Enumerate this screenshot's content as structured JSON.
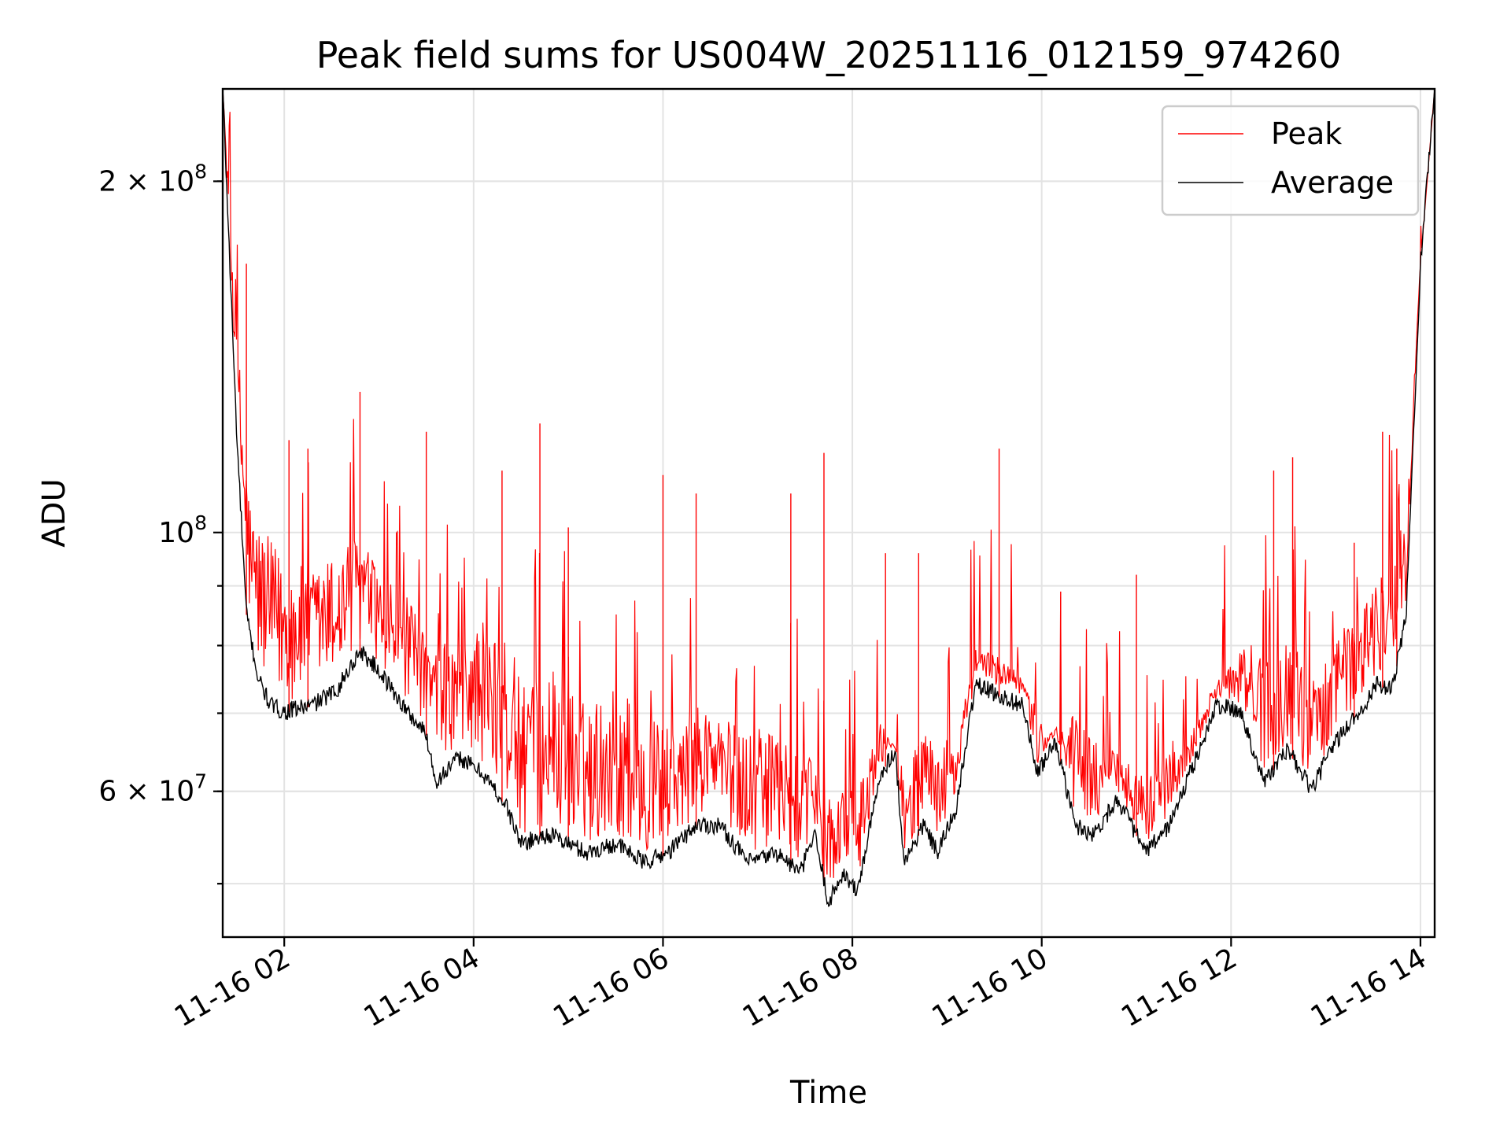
{
  "chart_data": {
    "type": "line",
    "title": "Peak field sums for US004W_20251116_012159_974260",
    "xlabel": "Time",
    "ylabel": "ADU",
    "yscale": "log",
    "xlim": [
      1.35,
      14.15
    ],
    "ylim": [
      45000000,
      240000000
    ],
    "x_ticks": [
      {
        "value": 2,
        "label": "11-16 02"
      },
      {
        "value": 4,
        "label": "11-16 04"
      },
      {
        "value": 6,
        "label": "11-16 06"
      },
      {
        "value": 8,
        "label": "11-16 08"
      },
      {
        "value": 10,
        "label": "11-16 10"
      },
      {
        "value": 12,
        "label": "11-16 12"
      },
      {
        "value": 14,
        "label": "11-16 14"
      }
    ],
    "y_major_ticks": [
      {
        "value": 60000000,
        "base": "6 × 10",
        "exp": "7"
      },
      {
        "value": 100000000,
        "base": "10",
        "exp": "8"
      },
      {
        "value": 200000000,
        "base": "2 × 10",
        "exp": "8"
      }
    ],
    "y_minor_ticks": [
      50000000,
      60000000,
      70000000,
      80000000,
      90000000,
      200000000
    ],
    "grid": true,
    "legend_position": "top-right",
    "series": [
      {
        "name": "Peak",
        "color": "#ff0000",
        "x": [
          1.35,
          1.5,
          1.65,
          1.8,
          2.0,
          2.3,
          2.6,
          2.8,
          3.0,
          3.3,
          3.55,
          3.85,
          4.1,
          4.4,
          4.55,
          4.8,
          5.2,
          5.5,
          5.8,
          6.1,
          6.4,
          6.7,
          7.0,
          7.3,
          7.55,
          7.75,
          7.9,
          8.05,
          8.3,
          8.55,
          8.8,
          9.1,
          9.3,
          9.6,
          9.85,
          10.05,
          10.35,
          10.65,
          10.9,
          11.1,
          11.35,
          11.6,
          11.85,
          12.1,
          12.4,
          12.65,
          12.9,
          13.2,
          13.5,
          13.7,
          13.85,
          14.0,
          14.15
        ],
        "values": [
          240000000,
          150000000,
          105000000,
          100000000,
          95000000,
          93000000,
          97000000,
          101000000,
          92000000,
          88000000,
          80000000,
          81000000,
          84000000,
          80000000,
          73000000,
          77000000,
          71000000,
          74000000,
          70000000,
          68000000,
          72000000,
          69000000,
          68000000,
          66000000,
          64000000,
          59000000,
          61000000,
          60000000,
          69000000,
          63000000,
          68000000,
          66000000,
          80000000,
          78000000,
          74000000,
          67000000,
          70000000,
          65000000,
          66000000,
          61000000,
          66000000,
          68000000,
          75000000,
          79000000,
          83000000,
          80000000,
          77000000,
          84000000,
          90000000,
          97000000,
          104000000,
          170000000,
          240000000
        ],
        "spikes": [
          {
            "x": 1.6,
            "y": 170000000
          },
          {
            "x": 2.05,
            "y": 120000000
          },
          {
            "x": 2.25,
            "y": 118000000
          },
          {
            "x": 2.8,
            "y": 132000000
          },
          {
            "x": 3.5,
            "y": 122000000
          },
          {
            "x": 4.3,
            "y": 113000000
          },
          {
            "x": 4.7,
            "y": 124000000
          },
          {
            "x": 5.0,
            "y": 101000000
          },
          {
            "x": 6.0,
            "y": 112000000
          },
          {
            "x": 6.35,
            "y": 108000000
          },
          {
            "x": 7.35,
            "y": 108000000
          },
          {
            "x": 7.7,
            "y": 117000000
          },
          {
            "x": 8.35,
            "y": 96000000
          },
          {
            "x": 8.7,
            "y": 96000000
          },
          {
            "x": 9.55,
            "y": 118000000
          },
          {
            "x": 10.2,
            "y": 89000000
          },
          {
            "x": 11.0,
            "y": 92000000
          },
          {
            "x": 12.45,
            "y": 113000000
          },
          {
            "x": 12.65,
            "y": 116000000
          },
          {
            "x": 13.3,
            "y": 98000000
          },
          {
            "x": 13.6,
            "y": 122000000
          },
          {
            "x": 13.75,
            "y": 118000000
          }
        ]
      },
      {
        "name": "Average",
        "color": "#000000",
        "x": [
          1.35,
          1.5,
          1.6,
          1.72,
          1.85,
          2.0,
          2.3,
          2.55,
          2.8,
          3.0,
          3.3,
          3.5,
          3.6,
          3.85,
          4.1,
          4.35,
          4.5,
          4.8,
          5.2,
          5.5,
          5.8,
          6.05,
          6.35,
          6.6,
          6.9,
          7.2,
          7.45,
          7.6,
          7.75,
          7.9,
          8.05,
          8.3,
          8.45,
          8.55,
          8.75,
          8.9,
          9.1,
          9.3,
          9.6,
          9.8,
          9.95,
          10.15,
          10.35,
          10.55,
          10.8,
          11.1,
          11.35,
          11.6,
          11.85,
          12.1,
          12.35,
          12.6,
          12.85,
          13.1,
          13.35,
          13.55,
          13.7,
          13.85,
          14.0,
          14.15
        ],
        "values": [
          240000000,
          120000000,
          85000000,
          75000000,
          71000000,
          70000000,
          71000000,
          73000000,
          79000000,
          76000000,
          70000000,
          67000000,
          61000000,
          64000000,
          62000000,
          58000000,
          54000000,
          55000000,
          53000000,
          54000000,
          52000000,
          53000000,
          56000000,
          56000000,
          52000000,
          53000000,
          51000000,
          55000000,
          48000000,
          51000000,
          49000000,
          62000000,
          65000000,
          52000000,
          56000000,
          53000000,
          58000000,
          74000000,
          72000000,
          71000000,
          62000000,
          66000000,
          56000000,
          55000000,
          59000000,
          53000000,
          56000000,
          63000000,
          71000000,
          70000000,
          61000000,
          65000000,
          60000000,
          66000000,
          70000000,
          74000000,
          73000000,
          85000000,
          170000000,
          240000000
        ]
      }
    ]
  }
}
